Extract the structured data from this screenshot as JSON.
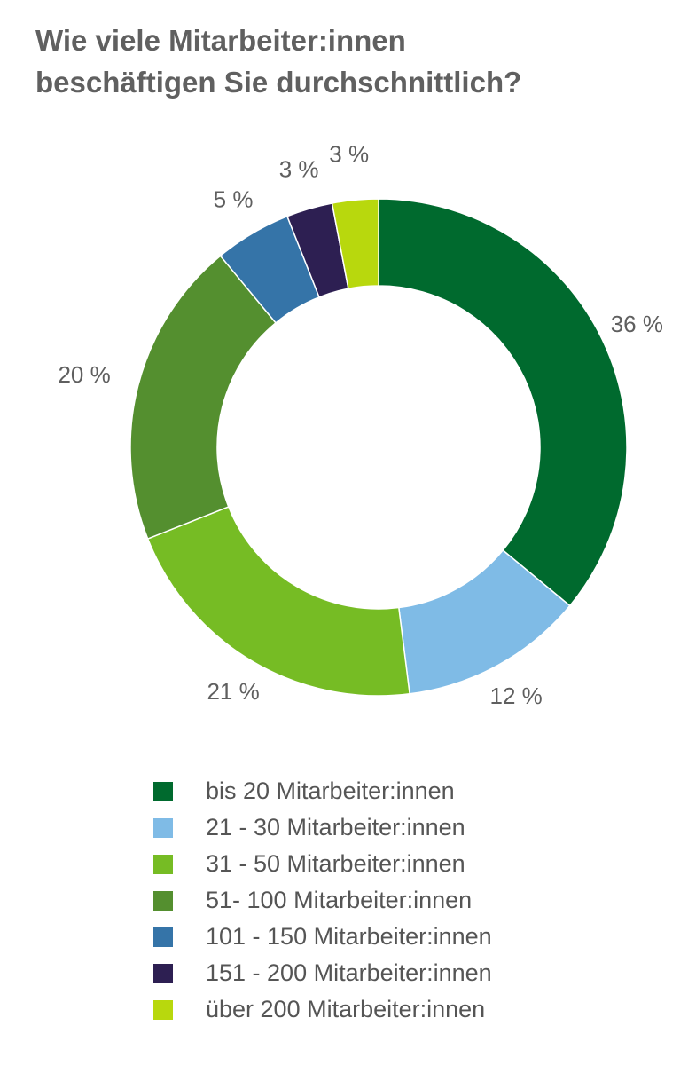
{
  "title_lines": [
    "Wie viele Mitarbeiter:innen",
    "beschäftigen Sie durchschnittlich?"
  ],
  "chart_data": {
    "type": "pie",
    "title": "Wie viele Mitarbeiter:innen beschäftigen Sie durchschnittlich?",
    "unit": "%",
    "donut": true,
    "legend_position": "bottom",
    "slices": [
      {
        "label": "bis 20 Mitarbeiter:innen",
        "value": 36,
        "value_label": "36 %",
        "color": "#006a2e"
      },
      {
        "label": "21 - 30 Mitarbeiter:innen",
        "value": 12,
        "value_label": "12 %",
        "color": "#7fbbe6"
      },
      {
        "label": "31 - 50 Mitarbeiter:innen",
        "value": 21,
        "value_label": "21 %",
        "color": "#76bc24"
      },
      {
        "label": "51- 100 Mitarbeiter:innen",
        "value": 20,
        "value_label": "20 %",
        "color": "#548f2f"
      },
      {
        "label": "101 - 150 Mitarbeiter:innen",
        "value": 5,
        "value_label": "5 %",
        "color": "#3574a8"
      },
      {
        "label": "151 - 200 Mitarbeiter:innen",
        "value": 3,
        "value_label": "3 %",
        "color": "#2d1f52"
      },
      {
        "label": "über 200 Mitarbeiter:innen",
        "value": 3,
        "value_label": "3 %",
        "color": "#b8d80d"
      }
    ]
  }
}
